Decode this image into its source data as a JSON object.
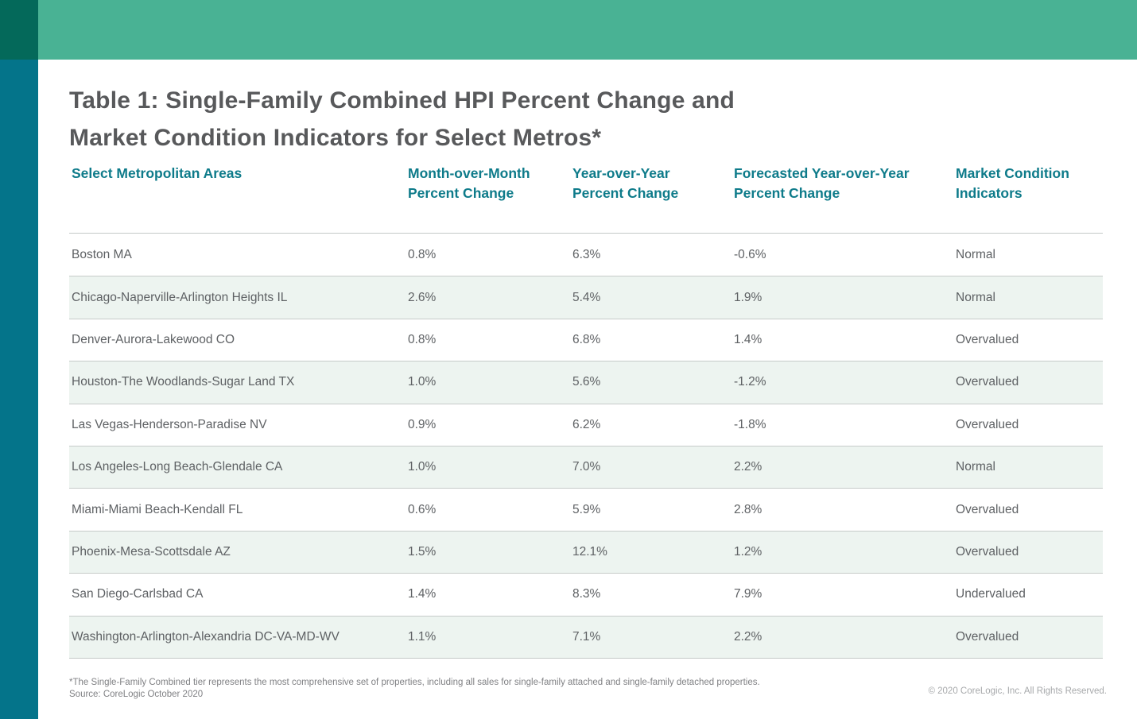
{
  "brand": {
    "corner_square_color": "#04695A",
    "top_bar_color": "#49B294",
    "side_bar_color": "#04748A",
    "header_text_color": "#0E7B8A",
    "alt_row_color": "#EDF4F0"
  },
  "title_lines": [
    "Table 1: Single-Family Combined HPI Percent Change and",
    "Market Condition Indicators for Select Metros*"
  ],
  "table": {
    "columns": [
      "Select Metropolitan Areas",
      "Month-over-Month\nPercent Change",
      "Year-over-Year\nPercent Change",
      "Forecasted Year-over-Year\nPercent Change",
      "Market Condition\nIndicators"
    ],
    "rows": [
      [
        "Boston MA",
        "0.8%",
        "6.3%",
        "-0.6%",
        "Normal"
      ],
      [
        "Chicago-Naperville-Arlington Heights IL",
        "2.6%",
        "5.4%",
        "1.9%",
        "Normal"
      ],
      [
        "Denver-Aurora-Lakewood CO",
        "0.8%",
        "6.8%",
        "1.4%",
        "Overvalued"
      ],
      [
        "Houston-The Woodlands-Sugar Land TX",
        "1.0%",
        "5.6%",
        "-1.2%",
        "Overvalued"
      ],
      [
        "Las Vegas-Henderson-Paradise NV",
        "0.9%",
        "6.2%",
        "-1.8%",
        "Overvalued"
      ],
      [
        "Los Angeles-Long Beach-Glendale CA",
        "1.0%",
        "7.0%",
        "2.2%",
        "Normal"
      ],
      [
        "Miami-Miami Beach-Kendall FL",
        "0.6%",
        "5.9%",
        "2.8%",
        "Overvalued"
      ],
      [
        "Phoenix-Mesa-Scottsdale AZ",
        "1.5%",
        "12.1%",
        "1.2%",
        "Overvalued"
      ],
      [
        "San Diego-Carlsbad CA",
        "1.4%",
        "8.3%",
        "7.9%",
        "Undervalued"
      ],
      [
        "Washington-Arlington-Alexandria DC-VA-MD-WV",
        "1.1%",
        "7.1%",
        "2.2%",
        "Overvalued"
      ]
    ]
  },
  "footnotes": {
    "note": "*The Single-Family Combined tier represents the most comprehensive set of properties, including all sales for single-family attached and single-family detached properties.",
    "source": "Source: CoreLogic October 2020",
    "copyright": "© 2020 CoreLogic, Inc. All Rights Reserved."
  }
}
